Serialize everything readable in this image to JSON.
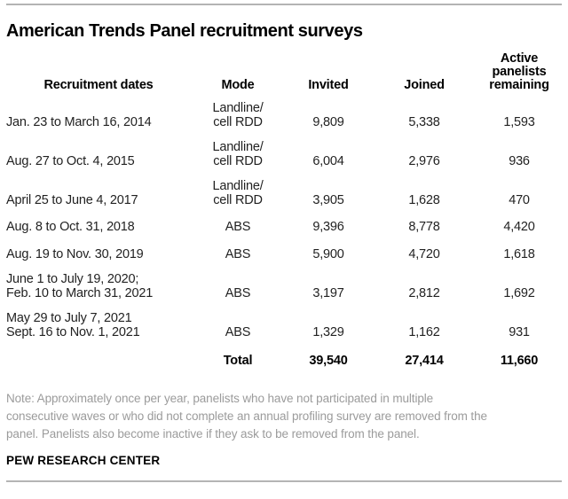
{
  "header": {
    "title": "American Trends Panel recruitment surveys"
  },
  "table": {
    "headers": [
      "Recruitment dates",
      "Mode",
      "Invited",
      "Joined",
      "Active\npanelists\nremaining"
    ],
    "rows": [
      {
        "dates": "Jan. 23 to March 16, 2014",
        "mode": "Landline/\ncell RDD",
        "invited": "9,809",
        "joined": "5,338",
        "active": "1,593"
      },
      {
        "dates": "Aug. 27 to Oct. 4, 2015",
        "mode": "Landline/\ncell RDD",
        "invited": "6,004",
        "joined": "2,976",
        "active": "936"
      },
      {
        "dates": "April 25 to June 4, 2017",
        "mode": "Landline/\ncell RDD",
        "invited": "3,905",
        "joined": "1,628",
        "active": "470"
      },
      {
        "dates": "Aug. 8 to Oct. 31, 2018",
        "mode": "ABS",
        "invited": "9,396",
        "joined": "8,778",
        "active": "4,420"
      },
      {
        "dates": "Aug. 19 to Nov. 30, 2019",
        "mode": "ABS",
        "invited": "5,900",
        "joined": "4,720",
        "active": "1,618"
      },
      {
        "dates": "June 1 to July 19, 2020;\nFeb. 10 to March 31, 2021",
        "mode": "ABS",
        "invited": "3,197",
        "joined": "2,812",
        "active": "1,692"
      },
      {
        "dates": "May 29 to July 7, 2021\nSept. 16 to Nov. 1, 2021",
        "mode": "ABS",
        "invited": "1,329",
        "joined": "1,162",
        "active": "931"
      }
    ],
    "total": {
      "label": "Total",
      "invited": "39,540",
      "joined": "27,414",
      "active": "11,660"
    }
  },
  "footer": {
    "note": "Note: Approximately once per year, panelists who have not participated in multiple\nconsecutive waves or who did not complete an annual profiling survey are removed from the\npanel. Panelists also become inactive if they ask to be removed from the panel.",
    "source": "PEW RESEARCH CENTER"
  },
  "colors": {
    "title_text": "#000000",
    "body_text": "#222222",
    "note_text": "#9b9b9b",
    "rule": "#b4b4b4",
    "background": "#ffffff"
  },
  "chart_data": {
    "type": "table",
    "title": "American Trends Panel recruitment surveys",
    "columns": [
      "Recruitment dates",
      "Mode",
      "Invited",
      "Joined",
      "Active panelists remaining"
    ],
    "rows": [
      [
        "Jan. 23 to March 16, 2014",
        "Landline/cell RDD",
        9809,
        5338,
        1593
      ],
      [
        "Aug. 27 to Oct. 4, 2015",
        "Landline/cell RDD",
        6004,
        2976,
        936
      ],
      [
        "April 25 to June 4, 2017",
        "Landline/cell RDD",
        3905,
        1628,
        470
      ],
      [
        "Aug. 8 to Oct. 31, 2018",
        "ABS",
        9396,
        8778,
        4420
      ],
      [
        "Aug. 19 to Nov. 30, 2019",
        "ABS",
        5900,
        4720,
        1618
      ],
      [
        "June 1 to July 19, 2020; Feb. 10 to March 31, 2021",
        "ABS",
        3197,
        2812,
        1692
      ],
      [
        "May 29 to July 7, 2021 / Sept. 16 to Nov. 1, 2021",
        "ABS",
        1329,
        1162,
        931
      ]
    ],
    "total_row": [
      "Total",
      39540,
      27414,
      11660
    ],
    "note": "Note: Approximately once per year, panelists who have not participated in multiple consecutive waves or who did not complete an annual profiling survey are removed from the panel. Panelists also become inactive if they ask to be removed from the panel.",
    "source": "PEW RESEARCH CENTER"
  }
}
